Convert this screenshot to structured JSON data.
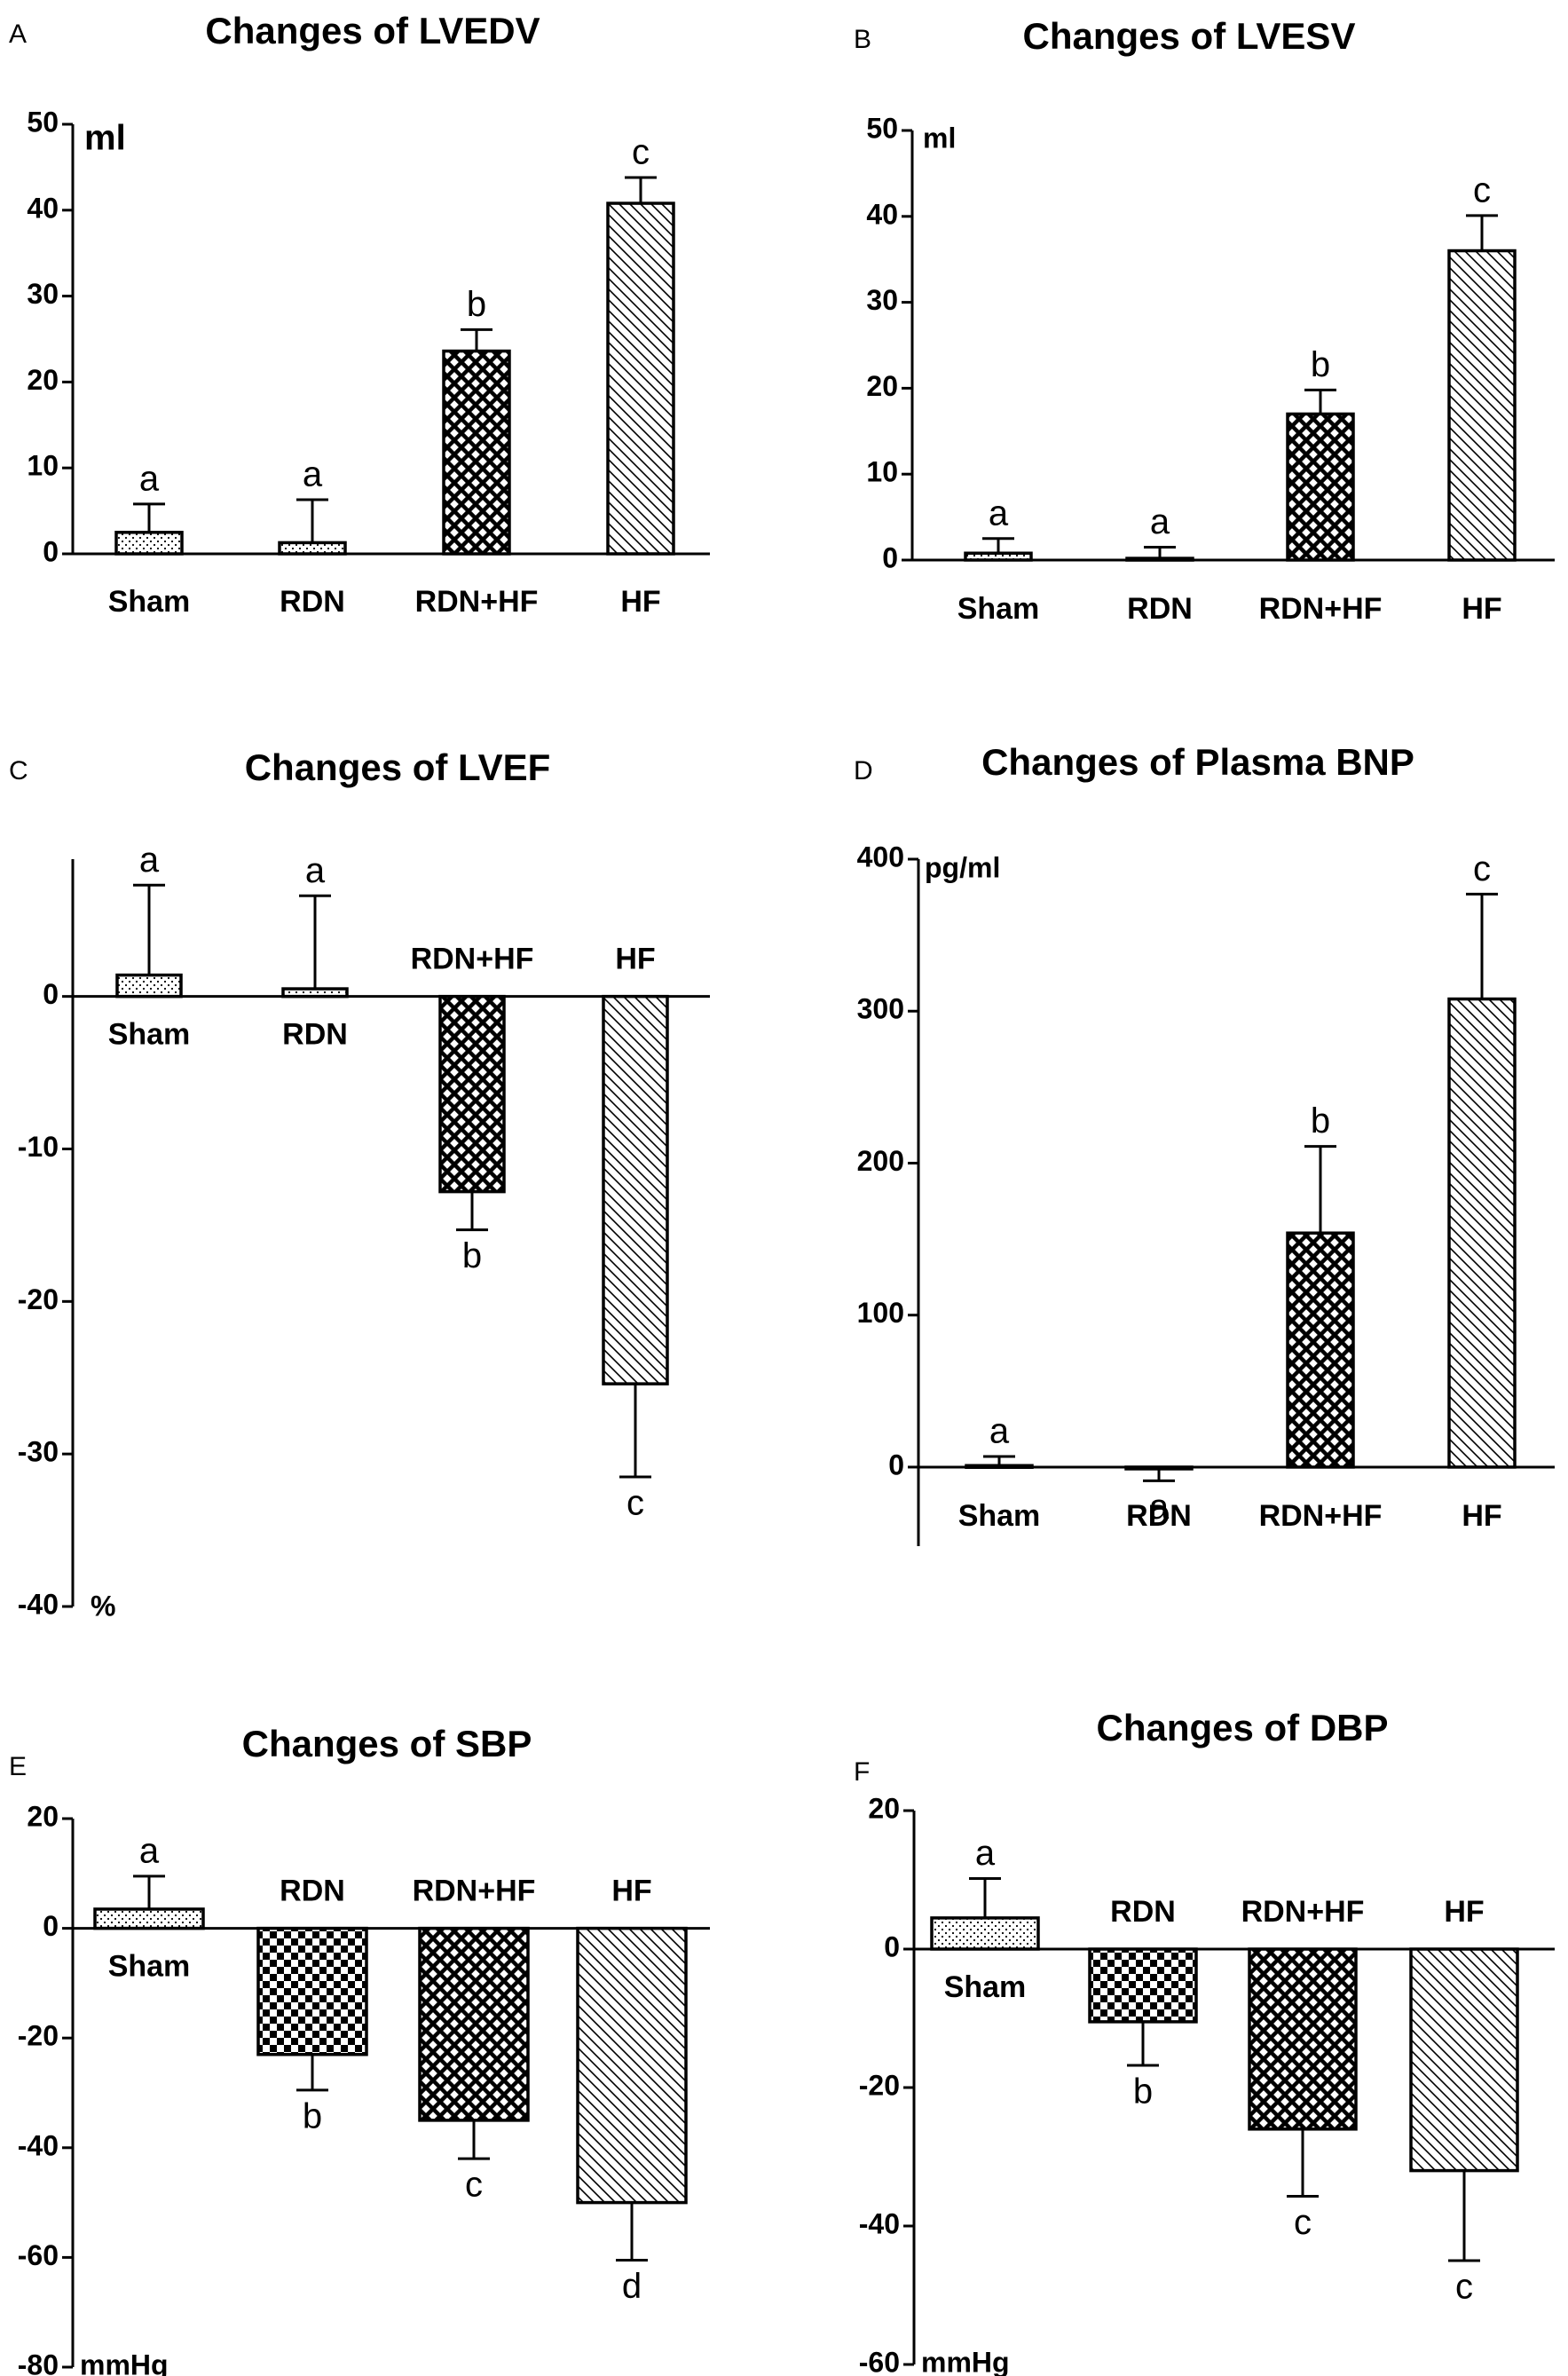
{
  "chart_data": [
    {
      "panel": "A",
      "type": "bar",
      "title": "Changes of LVEDV",
      "unit": "ml",
      "categories": [
        "Sham",
        "RDN",
        "RDN+HF",
        "HF"
      ],
      "values": [
        2.5,
        1.3,
        23.6,
        40.8
      ],
      "errors": [
        3.3,
        5.0,
        2.5,
        3.0
      ],
      "significance": [
        "a",
        "a",
        "b",
        "c"
      ],
      "patterns": [
        "dots",
        "dots",
        "crosshatch",
        "diagonal"
      ],
      "ylim": [
        0,
        50
      ],
      "yticks": [
        0,
        10,
        20,
        30,
        40,
        50
      ],
      "xlabel": "",
      "ylabel": "ml",
      "grid": false
    },
    {
      "panel": "B",
      "type": "bar",
      "title": "Changes of LVESV",
      "unit": "ml",
      "categories": [
        "Sham",
        "RDN",
        "RDN+HF",
        "HF"
      ],
      "values": [
        0.8,
        0.2,
        17.0,
        36.0
      ],
      "errors": [
        1.7,
        1.3,
        2.8,
        4.1
      ],
      "significance": [
        "a",
        "a",
        "b",
        "c"
      ],
      "patterns": [
        "dots",
        "dots",
        "crosshatch",
        "diagonal"
      ],
      "ylim": [
        0,
        50
      ],
      "yticks": [
        0,
        10,
        20,
        30,
        40,
        50
      ],
      "xlabel": "",
      "ylabel": "ml",
      "grid": false
    },
    {
      "panel": "C",
      "type": "bar",
      "title": "Changes of LVEF",
      "unit": "%",
      "categories": [
        "Sham",
        "RDN",
        "RDN+HF",
        "HF"
      ],
      "values": [
        1.4,
        0.5,
        -12.8,
        -25.4
      ],
      "errors": [
        5.9,
        6.1,
        2.5,
        6.1
      ],
      "significance": [
        "a",
        "a",
        "b",
        "c"
      ],
      "patterns": [
        "dots",
        "dots",
        "crosshatch",
        "diagonal"
      ],
      "ylim": [
        -40,
        9
      ],
      "yticks": [
        -40,
        -30,
        -20,
        -10,
        0
      ],
      "xlabel": "",
      "ylabel": "%",
      "grid": false
    },
    {
      "panel": "D",
      "type": "bar",
      "title": "Changes of Plasma BNP",
      "unit": "pg/ml",
      "categories": [
        "Sham",
        "RDN",
        "RDN+HF",
        "HF"
      ],
      "values": [
        1,
        -1,
        154,
        308
      ],
      "errors": [
        6,
        8,
        57,
        69
      ],
      "significance": [
        "a",
        "a",
        "b",
        "c"
      ],
      "patterns": [
        "dots",
        "dots",
        "crosshatch",
        "diagonal"
      ],
      "ylim": [
        -52,
        400
      ],
      "yticks": [
        0,
        100,
        200,
        300,
        400
      ],
      "xlabel": "",
      "ylabel": "pg/ml",
      "grid": false
    },
    {
      "panel": "E",
      "type": "bar",
      "title": "Changes of SBP",
      "unit": "mmHg",
      "categories": [
        "Sham",
        "RDN",
        "RDN+HF",
        "HF"
      ],
      "values": [
        3.5,
        -23,
        -35,
        -50
      ],
      "errors": [
        6.0,
        6.5,
        7.0,
        10.5
      ],
      "significance": [
        "a",
        "b",
        "c",
        "d"
      ],
      "patterns": [
        "dots",
        "checker",
        "crosshatch",
        "diagonal"
      ],
      "ylim": [
        -80,
        20
      ],
      "yticks": [
        -80,
        -60,
        -40,
        -20,
        0,
        20
      ],
      "xlabel": "",
      "ylabel": "mmHg",
      "grid": false
    },
    {
      "panel": "F",
      "type": "bar",
      "title": "Changes of DBP",
      "unit": "mmHg",
      "categories": [
        "Sham",
        "RDN",
        "RDN+HF",
        "HF"
      ],
      "values": [
        4.5,
        -10.5,
        -26,
        -32
      ],
      "errors": [
        5.7,
        6.3,
        9.7,
        13.0
      ],
      "significance": [
        "a",
        "b",
        "c",
        "c"
      ],
      "patterns": [
        "dots",
        "checker",
        "crosshatch",
        "diagonal"
      ],
      "ylim": [
        -60,
        20
      ],
      "yticks": [
        -60,
        -40,
        -20,
        0,
        20
      ],
      "xlabel": "",
      "ylabel": "mmHg",
      "grid": false
    }
  ]
}
